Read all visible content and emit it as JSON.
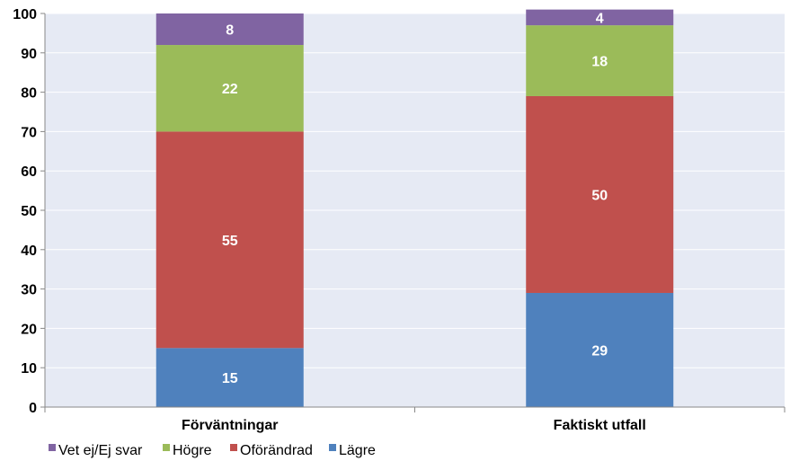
{
  "chart_data": {
    "type": "bar",
    "stacked": true,
    "categories": [
      "Förväntningar",
      "Faktiskt utfall"
    ],
    "series": [
      {
        "name": "Lägre",
        "values": [
          15,
          29
        ],
        "color": "#4F81BD"
      },
      {
        "name": "Oförändrad",
        "values": [
          55,
          50
        ],
        "color": "#C0504D"
      },
      {
        "name": "Högre",
        "values": [
          22,
          18
        ],
        "color": "#9BBB59"
      },
      {
        "name": "Vet ej/Ej svar",
        "values": [
          8,
          4
        ],
        "color": "#8064A2"
      }
    ],
    "legend_order": [
      "Vet ej/Ej svar",
      "Högre",
      "Oförändrad",
      "Lägre"
    ],
    "legend_position": "bottom",
    "ylim": [
      0,
      100
    ],
    "yticks": [
      0,
      10,
      20,
      30,
      40,
      50,
      60,
      70,
      80,
      90,
      100
    ],
    "grid": true,
    "plot_background": "#E6EAF4",
    "grid_color": "#FFFFFF"
  }
}
